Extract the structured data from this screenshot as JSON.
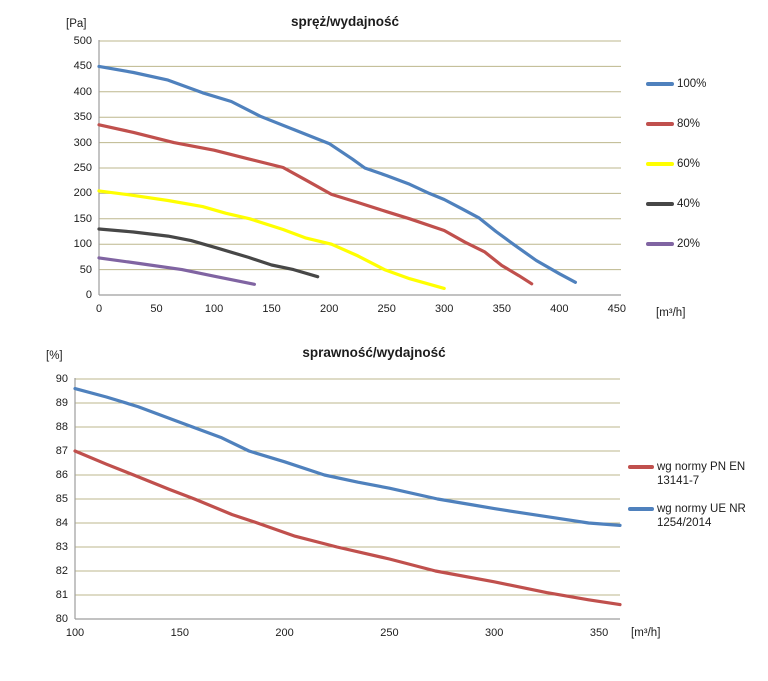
{
  "style": {
    "background": "#ffffff",
    "grid_color": "#bdb78d",
    "axis_color": "#9d9d9d",
    "text_color": "#1c1c1c"
  },
  "chart_data": [
    {
      "type": "line",
      "title": "spręż/wydajność",
      "y_unit": "[Pa]",
      "x_unit": "[m³/h]",
      "x_range": [
        0,
        453.6
      ],
      "y_range": [
        0,
        500
      ],
      "x_ticks": [
        0,
        50,
        100,
        150,
        200,
        250,
        300,
        350,
        400,
        450
      ],
      "y_ticks": [
        0,
        50,
        100,
        150,
        200,
        250,
        300,
        350,
        400,
        450,
        500
      ],
      "grid": "horizontal",
      "legend_position": "right",
      "series": [
        {
          "name": "100%",
          "color": "#4f81bd",
          "points": [
            [
              0,
              450
            ],
            [
              30,
              438
            ],
            [
              60,
              423
            ],
            [
              90,
              398
            ],
            [
              115,
              381
            ],
            [
              140,
              352
            ],
            [
              170,
              325
            ],
            [
              200,
              298
            ],
            [
              220,
              268
            ],
            [
              231,
              250
            ],
            [
              250,
              235
            ],
            [
              270,
              218
            ],
            [
              287,
              200
            ],
            [
              300,
              188
            ],
            [
              315,
              170
            ],
            [
              330,
              152
            ],
            [
              345,
              125
            ],
            [
              360,
              100
            ],
            [
              380,
              68
            ],
            [
              400,
              42
            ],
            [
              414,
              25
            ]
          ]
        },
        {
          "name": "80%",
          "color": "#c0504d",
          "points": [
            [
              0,
              335
            ],
            [
              30,
              320
            ],
            [
              65,
              300
            ],
            [
              100,
              285
            ],
            [
              130,
              268
            ],
            [
              160,
              251
            ],
            [
              180,
              226
            ],
            [
              202,
              198
            ],
            [
              225,
              182
            ],
            [
              250,
              164
            ],
            [
              270,
              150
            ],
            [
              300,
              127
            ],
            [
              318,
              104
            ],
            [
              335,
              85
            ],
            [
              350,
              58
            ],
            [
              365,
              38
            ],
            [
              376,
              22
            ]
          ]
        },
        {
          "name": "60%",
          "color": "#ffff00",
          "points": [
            [
              0,
              205
            ],
            [
              30,
              196
            ],
            [
              60,
              186
            ],
            [
              90,
              174
            ],
            [
              110,
              161
            ],
            [
              131,
              150
            ],
            [
              160,
              129
            ],
            [
              180,
              112
            ],
            [
              202,
              100
            ],
            [
              225,
              77
            ],
            [
              248,
              50
            ],
            [
              270,
              32
            ],
            [
              300,
              13
            ]
          ]
        },
        {
          "name": "40%",
          "color": "#474747",
          "points": [
            [
              0,
              130
            ],
            [
              30,
              124
            ],
            [
              60,
              116
            ],
            [
              80,
              107
            ],
            [
              102,
              93
            ],
            [
              130,
              74
            ],
            [
              150,
              59
            ],
            [
              169,
              50
            ],
            [
              190,
              36
            ]
          ]
        },
        {
          "name": "20%",
          "color": "#8064a2",
          "points": [
            [
              0,
              73
            ],
            [
              35,
              62
            ],
            [
              72,
              50
            ],
            [
              100,
              37
            ],
            [
              120,
              28
            ],
            [
              135,
              21
            ]
          ]
        }
      ]
    },
    {
      "type": "line",
      "title": "sprawność/wydajność",
      "y_unit": "[%]",
      "x_unit": "[m³/h]",
      "x_range": [
        100,
        360
      ],
      "y_range": [
        80,
        90
      ],
      "x_ticks": [
        100,
        150,
        200,
        250,
        300,
        350
      ],
      "y_ticks": [
        80,
        81,
        82,
        83,
        84,
        85,
        86,
        87,
        88,
        89,
        90
      ],
      "grid": "horizontal",
      "legend_position": "right",
      "series": [
        {
          "name": "wg normy PN EN 13141-7",
          "color": "#c0504d",
          "points": [
            [
              100,
              87.0
            ],
            [
              115,
              86.45
            ],
            [
              128,
              86.0
            ],
            [
              145,
              85.4
            ],
            [
              157,
              85.0
            ],
            [
              175,
              84.35
            ],
            [
              187,
              84.0
            ],
            [
              205,
              83.45
            ],
            [
              225,
              83.0
            ],
            [
              250,
              82.5
            ],
            [
              272,
              82.0
            ],
            [
              300,
              81.55
            ],
            [
              325,
              81.1
            ],
            [
              345,
              80.8
            ],
            [
              360,
              80.6
            ]
          ]
        },
        {
          "name": "wg normy UE NR 1254/2014",
          "color": "#4f81bd",
          "points": [
            [
              100,
              89.6
            ],
            [
              115,
              89.25
            ],
            [
              130,
              88.85
            ],
            [
              150,
              88.2
            ],
            [
              170,
              87.55
            ],
            [
              183,
              87.0
            ],
            [
              200,
              86.55
            ],
            [
              219,
              86.0
            ],
            [
              235,
              85.7
            ],
            [
              250,
              85.45
            ],
            [
              273,
              85.0
            ],
            [
              290,
              84.75
            ],
            [
              300,
              84.6
            ],
            [
              315,
              84.4
            ],
            [
              330,
              84.2
            ],
            [
              345,
              84.0
            ],
            [
              360,
              83.9
            ]
          ]
        }
      ]
    }
  ]
}
